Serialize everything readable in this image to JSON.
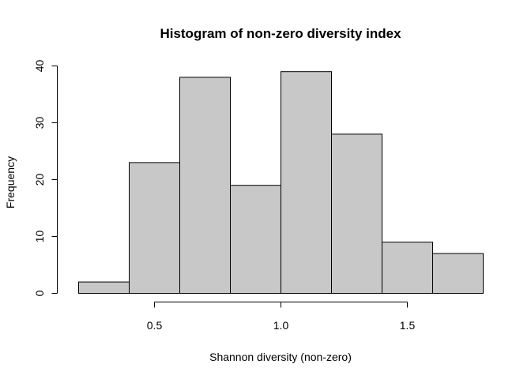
{
  "chart_data": {
    "type": "bar",
    "subtype": "histogram",
    "title": "Histogram of non-zero diversity index",
    "xlabel": "Shannon diversity (non-zero)",
    "ylabel": "Frequency",
    "bin_edges": [
      0.2,
      0.4,
      0.6,
      0.8,
      1.0,
      1.2,
      1.4,
      1.6,
      1.8
    ],
    "values": [
      2,
      23,
      38,
      19,
      39,
      28,
      9,
      7
    ],
    "xlim": [
      0.2,
      1.8
    ],
    "ylim": [
      0,
      40
    ],
    "x_ticks": [
      0.5,
      1.0,
      1.5
    ],
    "x_tick_labels": [
      "0.5",
      "1.0",
      "1.5"
    ],
    "y_ticks": [
      0,
      10,
      20,
      30,
      40
    ],
    "y_tick_labels": [
      "0",
      "10",
      "20",
      "30",
      "40"
    ],
    "bar_fill": "#c8c8c8",
    "bar_stroke": "#000000",
    "grid": false,
    "legend": "none"
  }
}
